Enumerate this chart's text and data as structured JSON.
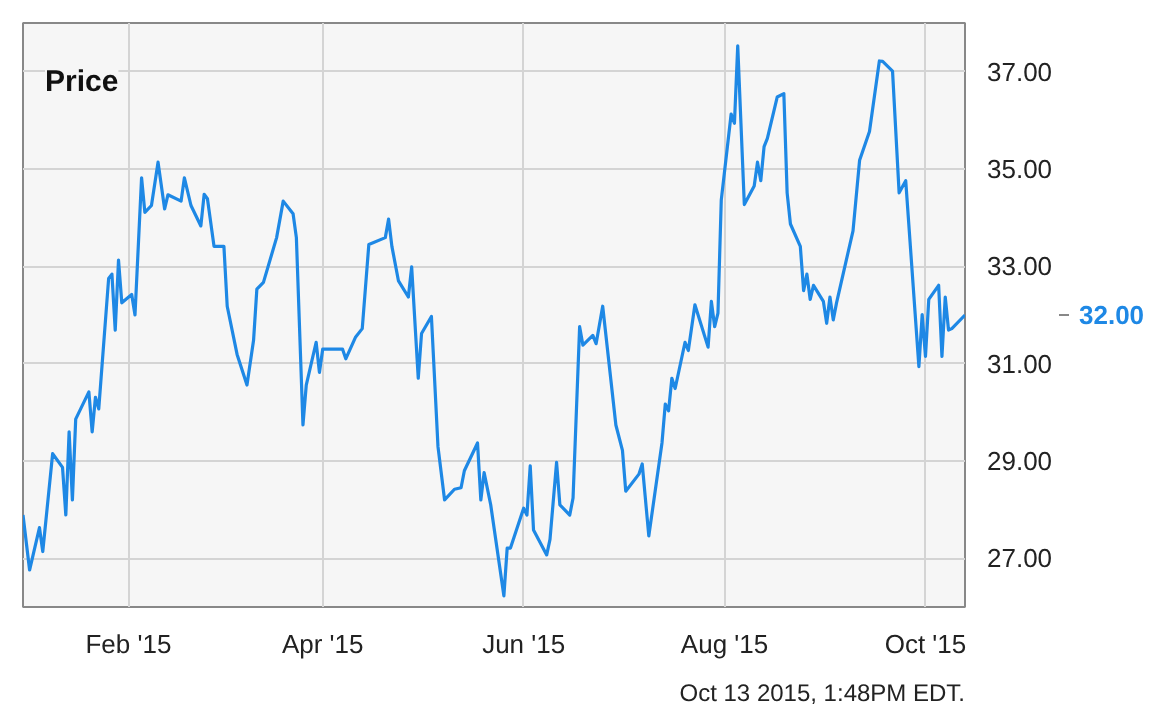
{
  "chart_data": {
    "type": "line",
    "title": "Price",
    "x": [
      "2014-12-31",
      "2015-01-02",
      "2015-01-05",
      "2015-01-06",
      "2015-01-09",
      "2015-01-12",
      "2015-01-13",
      "2015-01-14",
      "2015-01-15",
      "2015-01-16",
      "2015-01-20",
      "2015-01-21",
      "2015-01-22",
      "2015-01-23",
      "2015-01-26",
      "2015-01-27",
      "2015-01-28",
      "2015-01-29",
      "2015-01-30",
      "2015-02-02",
      "2015-02-03",
      "2015-02-05",
      "2015-02-06",
      "2015-02-08",
      "2015-02-10",
      "2015-02-12",
      "2015-02-13",
      "2015-02-17",
      "2015-02-18",
      "2015-02-20",
      "2015-02-23",
      "2015-02-24",
      "2015-02-25",
      "2015-02-27",
      "2015-03-02",
      "2015-03-03",
      "2015-03-06",
      "2015-03-09",
      "2015-03-11",
      "2015-03-12",
      "2015-03-14",
      "2015-03-18",
      "2015-03-20",
      "2015-03-23",
      "2015-03-24",
      "2015-03-26",
      "2015-03-27",
      "2015-03-30",
      "2015-03-31",
      "2015-04-01",
      "2015-04-07",
      "2015-04-08",
      "2015-04-11",
      "2015-04-13",
      "2015-04-15",
      "2015-04-20",
      "2015-04-21",
      "2015-04-22",
      "2015-04-24",
      "2015-04-27",
      "2015-04-28",
      "2015-04-30",
      "2015-05-01",
      "2015-05-04",
      "2015-05-06",
      "2015-05-08",
      "2015-05-11",
      "2015-05-13",
      "2015-05-14",
      "2015-05-18",
      "2015-05-19",
      "2015-05-20",
      "2015-05-22",
      "2015-05-26",
      "2015-05-27",
      "2015-05-28",
      "2015-06-01",
      "2015-06-02",
      "2015-06-03",
      "2015-06-04",
      "2015-06-08",
      "2015-06-09",
      "2015-06-11",
      "2015-06-12",
      "2015-06-15",
      "2015-06-16",
      "2015-06-18",
      "2015-06-19",
      "2015-06-22",
      "2015-06-23",
      "2015-06-25",
      "2015-06-29",
      "2015-07-01",
      "2015-07-02",
      "2015-07-06",
      "2015-07-07",
      "2015-07-09",
      "2015-07-13",
      "2015-07-14",
      "2015-07-15",
      "2015-07-16",
      "2015-07-17",
      "2015-07-20",
      "2015-07-21",
      "2015-07-23",
      "2015-07-27",
      "2015-07-28",
      "2015-07-29",
      "2015-07-30",
      "2015-07-31",
      "2015-08-03",
      "2015-08-04",
      "2015-08-05",
      "2015-08-07",
      "2015-08-10",
      "2015-08-11",
      "2015-08-12",
      "2015-08-13",
      "2015-08-14",
      "2015-08-17",
      "2015-08-19",
      "2015-08-20",
      "2015-08-21",
      "2015-08-24",
      "2015-08-25",
      "2015-08-26",
      "2015-08-27",
      "2015-08-28",
      "2015-08-31",
      "2015-09-01",
      "2015-09-02",
      "2015-09-03",
      "2015-09-04",
      "2015-09-09",
      "2015-09-11",
      "2015-09-14",
      "2015-09-17",
      "2015-09-18",
      "2015-09-21",
      "2015-09-23",
      "2015-09-25",
      "2015-09-29",
      "2015-09-30",
      "2015-10-01",
      "2015-10-02",
      "2015-10-05",
      "2015-10-06",
      "2015-10-07",
      "2015-10-08",
      "2015-10-09",
      "2015-10-13"
    ],
    "series": [
      {
        "color": "#1e88e5",
        "values": [
          27.89,
          26.76,
          27.63,
          27.14,
          29.15,
          28.87,
          27.89,
          29.6,
          28.2,
          29.86,
          30.42,
          29.6,
          30.31,
          30.07,
          32.75,
          32.84,
          31.69,
          33.13,
          32.25,
          32.42,
          32.0,
          34.82,
          34.11,
          34.25,
          35.14,
          34.18,
          34.47,
          34.34,
          34.82,
          34.25,
          33.83,
          34.48,
          34.39,
          33.41,
          33.41,
          32.18,
          31.19,
          30.56,
          31.48,
          32.53,
          32.67,
          33.59,
          34.34,
          34.08,
          33.59,
          29.74,
          30.56,
          31.44,
          30.82,
          31.3,
          31.3,
          31.1,
          31.55,
          31.72,
          33.45,
          33.59,
          33.97,
          33.41,
          32.7,
          32.37,
          32.99,
          30.7,
          31.62,
          31.97,
          29.29,
          28.2,
          28.42,
          28.45,
          28.8,
          29.37,
          28.2,
          28.76,
          28.1,
          26.23,
          27.21,
          27.21,
          28.03,
          27.89,
          28.9,
          27.58,
          27.07,
          27.39,
          28.97,
          28.1,
          27.89,
          28.24,
          31.76,
          31.38,
          31.58,
          31.41,
          32.18,
          29.74,
          29.22,
          28.38,
          28.73,
          28.94,
          27.46,
          29.37,
          30.17,
          30.03,
          30.7,
          30.49,
          31.44,
          31.27,
          32.21,
          31.34,
          32.28,
          31.76,
          32.04,
          34.36,
          36.13,
          35.94,
          37.53,
          34.27,
          34.65,
          35.14,
          34.76,
          35.46,
          35.63,
          36.48,
          36.55,
          34.51,
          33.87,
          33.41,
          32.5,
          32.84,
          32.32,
          32.61,
          32.28,
          31.83,
          32.37,
          31.9,
          32.25,
          33.73,
          35.18,
          35.77,
          37.22,
          37.21,
          37.01,
          34.51,
          34.76,
          30.94,
          32.01,
          31.15,
          32.32,
          32.61,
          31.15,
          32.37,
          31.69,
          31.72,
          32.0
        ]
      }
    ],
    "xlim": [
      "2014-12-31",
      "2015-10-13"
    ],
    "xticks": [
      {
        "value": "2015-02-01",
        "label": "Feb '15"
      },
      {
        "value": "2015-04-01",
        "label": "Apr '15"
      },
      {
        "value": "2015-06-01",
        "label": "Jun '15"
      },
      {
        "value": "2015-08-01",
        "label": "Aug '15"
      },
      {
        "value": "2015-10-01",
        "label": "Oct '15"
      }
    ],
    "ylim": [
      26,
      38
    ],
    "yticks": [
      {
        "value": 27,
        "label": "27.00"
      },
      {
        "value": 29,
        "label": "29.00"
      },
      {
        "value": 31,
        "label": "31.00"
      },
      {
        "value": 33,
        "label": "33.00"
      },
      {
        "value": 35,
        "label": "35.00"
      },
      {
        "value": 37,
        "label": "37.00"
      }
    ],
    "grid": true,
    "annotations": [
      "32.00",
      "Oct 13 2015, 1:48PM EDT."
    ]
  }
}
